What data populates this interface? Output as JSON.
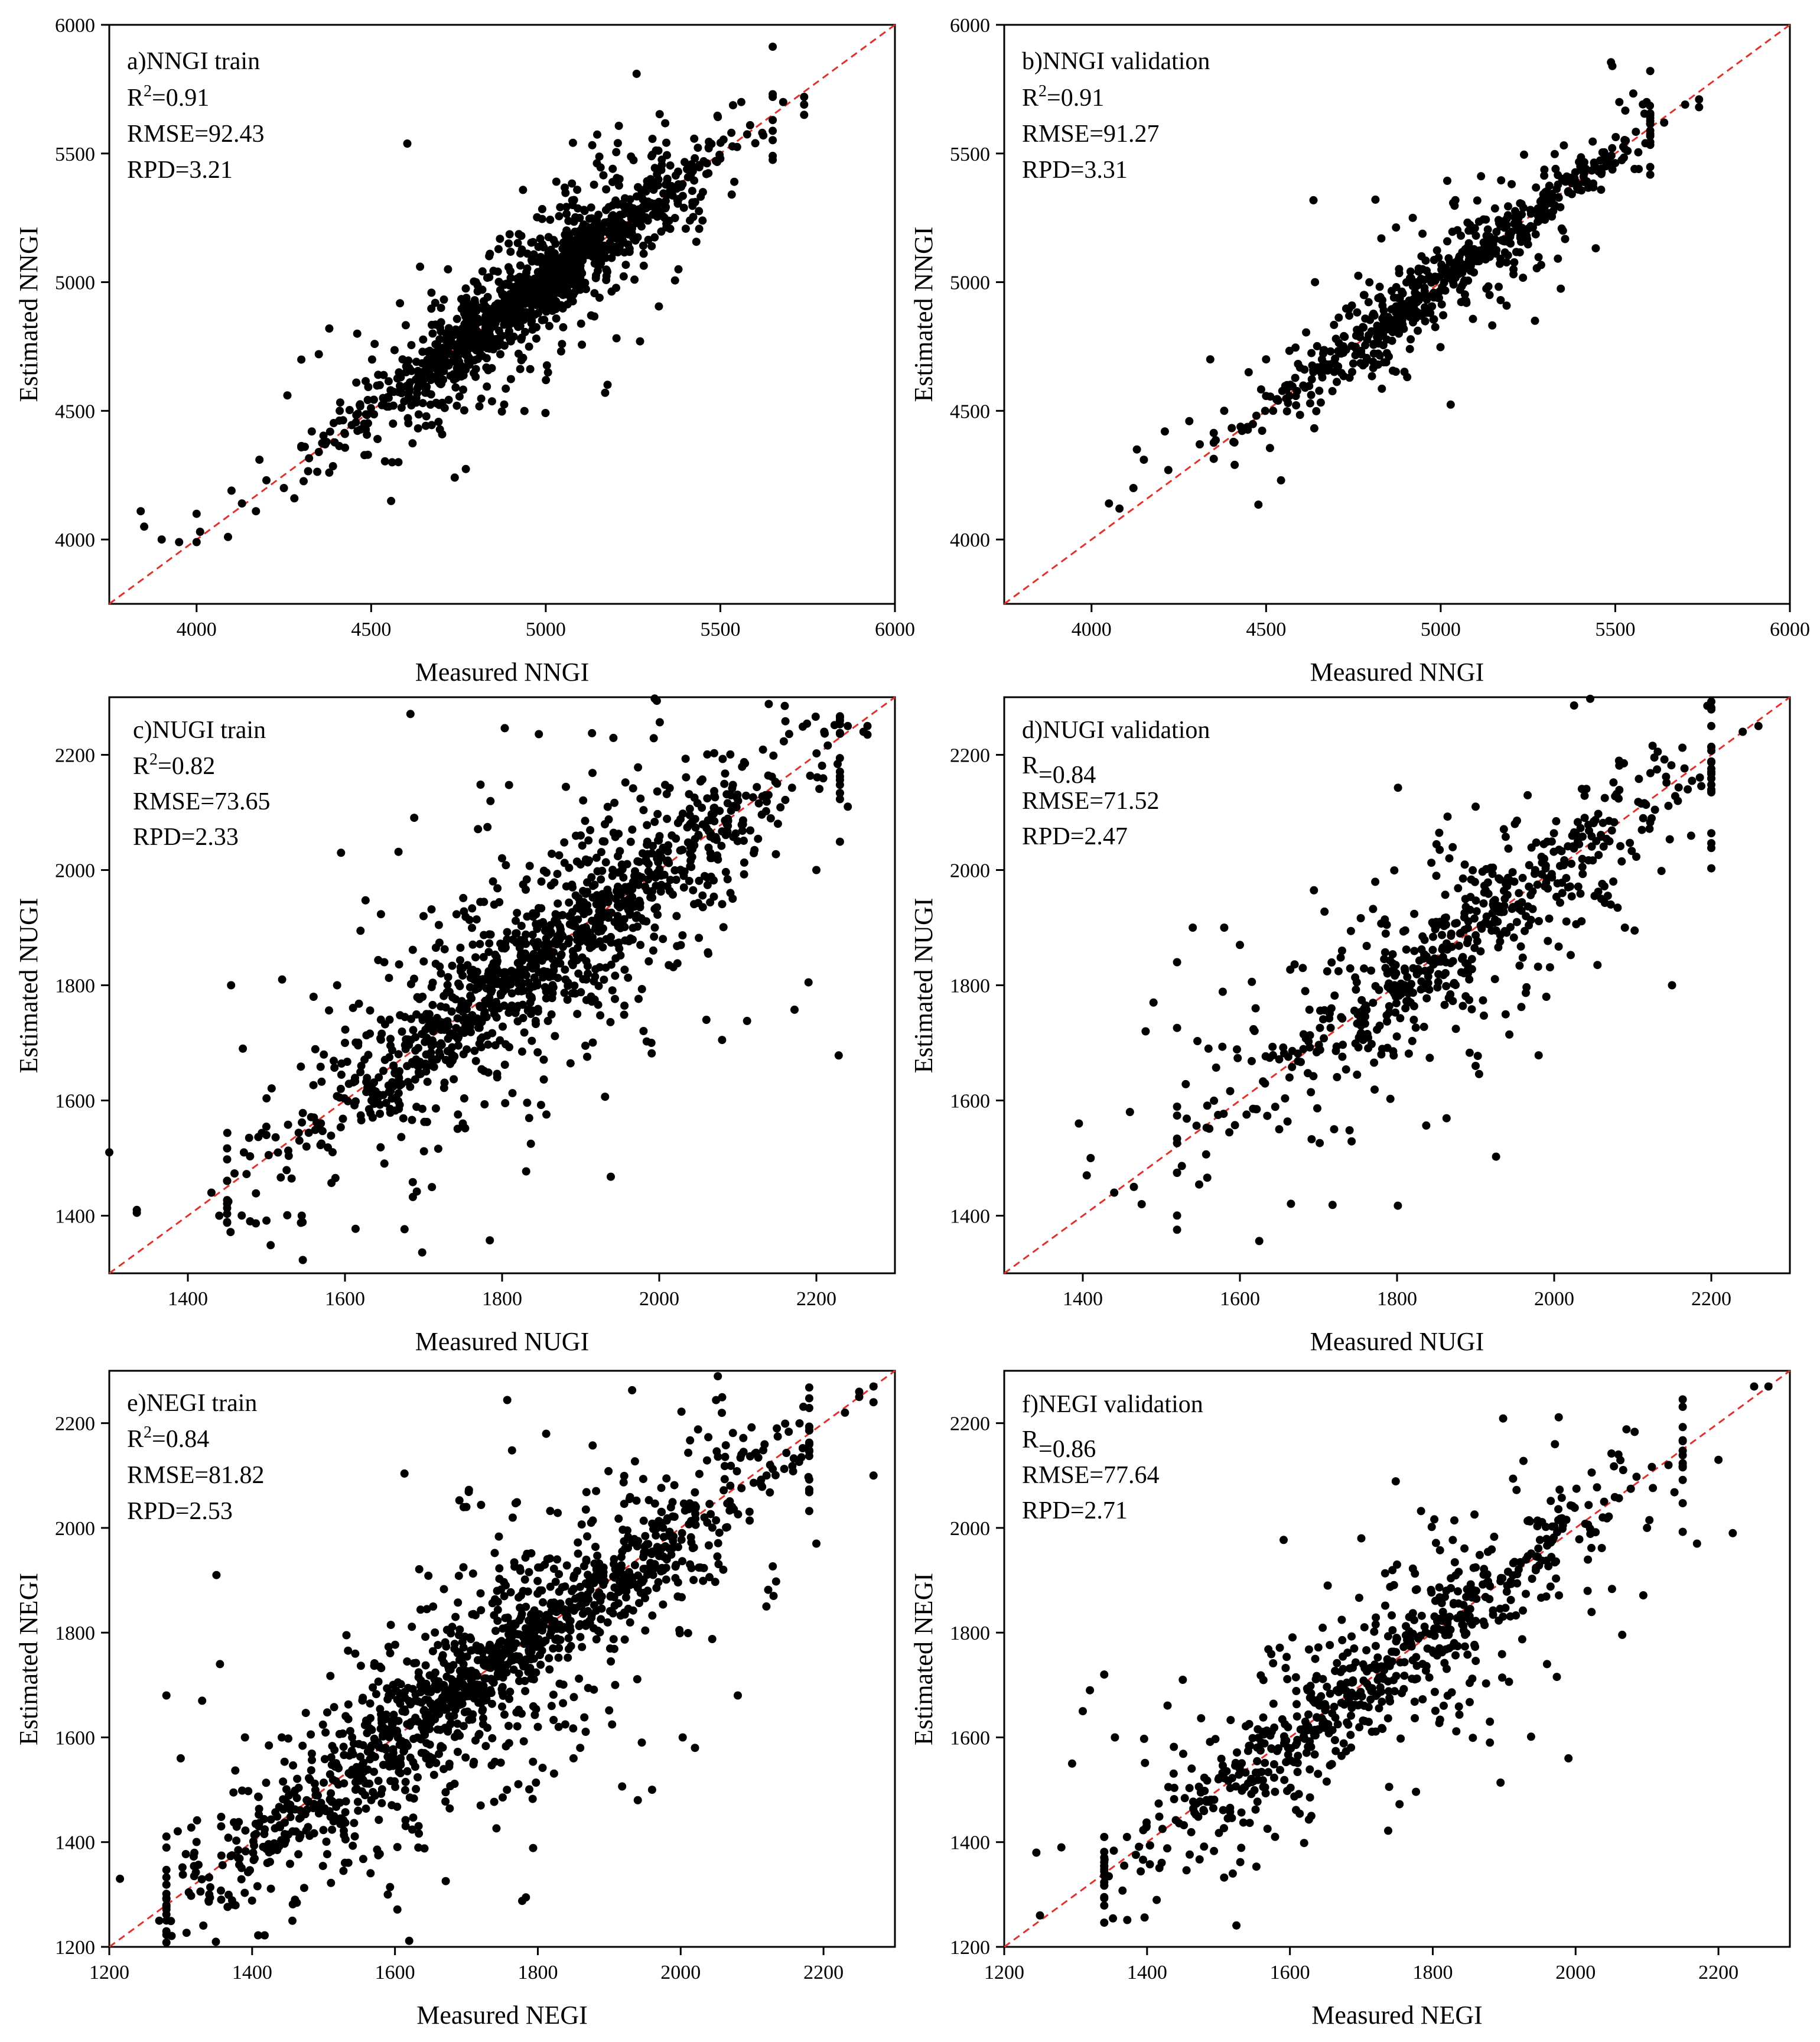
{
  "colors": {
    "points": "#000000",
    "identity_line": "#e0312b",
    "axes": "#000000"
  },
  "chart_data": [
    {
      "type": "scatter",
      "id": "a",
      "xlabel": "Measured NNGI",
      "ylabel": "Estimated NNGI",
      "xlim": [
        3750,
        6000
      ],
      "ylim": [
        3750,
        6000
      ],
      "xticks": [
        4000,
        4500,
        5000,
        5500,
        6000
      ],
      "yticks": [
        4000,
        4500,
        5000,
        5500,
        6000
      ],
      "xtick_labels": [
        "4000",
        "4500",
        "5000",
        "5500",
        "6000"
      ],
      "ytick_labels": [
        "4000",
        "4500",
        "5000",
        "5500",
        "6000"
      ],
      "annotation": {
        "title": "a)NNGI train",
        "r_label": "R",
        "r_sup": "2",
        "r_value": "=0.91",
        "rmse": "RMSE=92.43",
        "rpd": "RPD=3.21"
      },
      "identity_line": true,
      "points": [
        [
          3840,
          4110
        ],
        [
          3850,
          4050
        ],
        [
          3900,
          4000
        ],
        [
          3950,
          3990
        ],
        [
          4000,
          4100
        ],
        [
          4010,
          4030
        ],
        [
          4000,
          3990
        ],
        [
          4090,
          4010
        ],
        [
          4100,
          4190
        ],
        [
          4130,
          4140
        ],
        [
          4170,
          4110
        ],
        [
          4180,
          4310
        ],
        [
          4200,
          4230
        ],
        [
          4250,
          4200
        ],
        [
          4260,
          4560
        ],
        [
          4280,
          4160
        ],
        [
          4310,
          4360
        ],
        [
          4330,
          4420
        ],
        [
          4350,
          4720
        ],
        [
          4350,
          4340
        ],
        [
          4380,
          4820
        ],
        [
          4380,
          4260
        ],
        [
          4410,
          4500
        ],
        [
          4460,
          4800
        ],
        [
          4480,
          4450
        ],
        [
          4510,
          4760
        ],
        [
          4520,
          4640
        ],
        [
          4550,
          4550
        ],
        [
          4560,
          4300
        ],
        [
          4590,
          4700
        ],
        [
          4640,
          5060
        ],
        [
          4700,
          4900
        ],
        [
          4720,
          5050
        ],
        [
          4750,
          4650
        ],
        [
          4780,
          4870
        ],
        [
          4800,
          5000
        ],
        [
          4840,
          5110
        ],
        [
          4870,
          4720
        ],
        [
          4900,
          4770
        ],
        [
          4930,
          5180
        ],
        [
          4960,
          4850
        ],
        [
          4990,
          5020
        ],
        [
          5020,
          4930
        ],
        [
          5060,
          5200
        ],
        [
          5100,
          5000
        ],
        [
          5130,
          5290
        ],
        [
          5170,
          4570
        ],
        [
          5200,
          5250
        ],
        [
          5240,
          5130
        ],
        [
          5270,
          4770
        ],
        [
          5300,
          5400
        ],
        [
          5340,
          5250
        ],
        [
          5380,
          5380
        ],
        [
          5380,
          5050
        ],
        [
          5420,
          5310
        ],
        [
          5460,
          5420
        ],
        [
          5500,
          5480
        ],
        [
          5540,
          5390
        ],
        [
          5560,
          5700
        ],
        [
          5600,
          5540
        ],
        [
          5650,
          5630
        ],
        [
          5680,
          5700
        ],
        [
          5740,
          5690
        ],
        [
          5740,
          5650
        ],
        [
          5740,
          5720
        ],
        [
          5620,
          5580
        ],
        [
          5450,
          5350
        ],
        [
          5150,
          5100
        ],
        [
          4850,
          4830
        ],
        [
          4600,
          4650
        ],
        [
          4700,
          4700
        ],
        [
          4950,
          4950
        ],
        [
          5050,
          5050
        ],
        [
          5250,
          5250
        ]
      ],
      "density": {
        "seed": 11,
        "count": 1300,
        "x_range": [
          4300,
          5650
        ],
        "sd_base": 35,
        "sd_extra": 140,
        "mean": 4980,
        "spread": 260
      }
    },
    {
      "type": "scatter",
      "id": "b",
      "xlabel": "Measured NNGI",
      "ylabel": "Estimated NNGI",
      "xlim": [
        3750,
        6000
      ],
      "ylim": [
        3750,
        6000
      ],
      "xticks": [
        4000,
        4500,
        5000,
        5500,
        6000
      ],
      "yticks": [
        4000,
        4500,
        5000,
        5500,
        6000
      ],
      "xtick_labels": [
        "4000",
        "4500",
        "5000",
        "5500",
        "6000"
      ],
      "ytick_labels": [
        "4000",
        "4500",
        "5000",
        "5500",
        "6000"
      ],
      "annotation": {
        "title": "b)NNGI validation",
        "r_label": "R",
        "r_sup": "2",
        "r_value": "=0.91",
        "rmse": "RMSE=91.27",
        "rpd": "RPD=3.31"
      },
      "identity_line": true,
      "points": [
        [
          4050,
          4140
        ],
        [
          4080,
          4120
        ],
        [
          4120,
          4200
        ],
        [
          4130,
          4350
        ],
        [
          4150,
          4310
        ],
        [
          4210,
          4420
        ],
        [
          4220,
          4270
        ],
        [
          4280,
          4460
        ],
        [
          4310,
          4370
        ],
        [
          4340,
          4700
        ],
        [
          4380,
          4500
        ],
        [
          4410,
          4290
        ],
        [
          4450,
          4650
        ],
        [
          4500,
          4700
        ],
        [
          4520,
          4500
        ],
        [
          4560,
          4600
        ],
        [
          4640,
          5000
        ],
        [
          4660,
          4700
        ],
        [
          4700,
          4780
        ],
        [
          4780,
          4950
        ],
        [
          4830,
          5170
        ],
        [
          4880,
          4800
        ],
        [
          4920,
          5250
        ],
        [
          4970,
          4880
        ],
        [
          5040,
          5040
        ],
        [
          5080,
          5200
        ],
        [
          5140,
          4950
        ],
        [
          5200,
          5150
        ],
        [
          5270,
          4850
        ],
        [
          5300,
          5350
        ],
        [
          5350,
          5200
        ],
        [
          5400,
          5450
        ],
        [
          5460,
          5420
        ],
        [
          5530,
          5550
        ],
        [
          5590,
          5700
        ],
        [
          5640,
          5620
        ],
        [
          5700,
          5690
        ],
        [
          5740,
          5710
        ],
        [
          5740,
          5680
        ]
      ],
      "density": {
        "seed": 23,
        "count": 620,
        "x_range": [
          4350,
          5600
        ],
        "sd_base": 30,
        "sd_extra": 110,
        "mean": 5000,
        "spread": 280
      }
    },
    {
      "type": "scatter",
      "id": "c",
      "xlabel": "Measured NUGI",
      "ylabel": "Estimated NUGI",
      "xlim": [
        1300,
        2300
      ],
      "ylim": [
        1300,
        2300
      ],
      "xticks": [
        1400,
        1600,
        1800,
        2000,
        2200
      ],
      "yticks": [
        1400,
        1600,
        1800,
        2000,
        2200
      ],
      "xtick_labels": [
        "1400",
        "1600",
        "1800",
        "2000",
        "2200"
      ],
      "ytick_labels": [
        "1400",
        "1600",
        "1800",
        "2000",
        "2200"
      ],
      "annotation": {
        "title": "c)NUGI train",
        "r_label": "R",
        "r_sup": "2",
        "r_value": "=0.82",
        "rmse": "RMSE=73.65",
        "rpd": "RPD=2.33"
      },
      "identity_line": true,
      "points": [
        [
          1300,
          1510
        ],
        [
          1335,
          1410
        ],
        [
          1335,
          1405
        ],
        [
          1430,
          1440
        ],
        [
          1440,
          1400
        ],
        [
          1455,
          1800
        ],
        [
          1470,
          1690
        ],
        [
          1500,
          1540
        ],
        [
          1520,
          1810
        ],
        [
          1545,
          1400
        ],
        [
          1560,
          1780
        ],
        [
          1590,
          1800
        ],
        [
          1595,
          2030
        ],
        [
          1600,
          1700
        ],
        [
          1650,
          1840
        ],
        [
          1700,
          1920
        ],
        [
          1750,
          1560
        ],
        [
          1790,
          1940
        ],
        [
          1850,
          1980
        ],
        [
          1900,
          2060
        ],
        [
          1990,
          1700
        ],
        [
          2060,
          1740
        ],
        [
          2080,
          1705
        ],
        [
          2190,
          1805
        ],
        [
          2200,
          2000
        ],
        [
          2240,
          2110
        ],
        [
          2260,
          2240
        ],
        [
          2265,
          2250
        ],
        [
          2265,
          2235
        ],
        [
          2240,
          2250
        ],
        [
          2210,
          2240
        ],
        [
          2150,
          2150
        ]
      ],
      "density": {
        "seed": 37,
        "count": 1250,
        "x_range": [
          1450,
          2230
        ],
        "sd_base": 30,
        "sd_extra": 120,
        "mean": 1860,
        "spread": 170
      }
    },
    {
      "type": "scatter",
      "id": "d",
      "xlabel": "Measured NUGI",
      "ylabel": "Estimated NUGI",
      "xlim": [
        1300,
        2300
      ],
      "ylim": [
        1300,
        2300
      ],
      "xticks": [
        1400,
        1600,
        1800,
        2000,
        2200
      ],
      "yticks": [
        1400,
        1600,
        1800,
        2000,
        2200
      ],
      "xtick_labels": [
        "1400",
        "1600",
        "1800",
        "2000",
        "2200"
      ],
      "ytick_labels": [
        "1400",
        "1600",
        "1800",
        "2000",
        "2200"
      ],
      "annotation": {
        "title": "d)NUGI validation",
        "r_label": "R",
        "r_sup": "",
        "r_value": "=0.84",
        "rmse": "RMSE=71.52",
        "rpd": "RPD=2.47"
      },
      "identity_line": true,
      "points": [
        [
          1395,
          1560
        ],
        [
          1405,
          1470
        ],
        [
          1410,
          1500
        ],
        [
          1440,
          1440
        ],
        [
          1460,
          1580
        ],
        [
          1465,
          1450
        ],
        [
          1475,
          1420
        ],
        [
          1480,
          1720
        ],
        [
          1490,
          1770
        ],
        [
          1520,
          1840
        ],
        [
          1540,
          1900
        ],
        [
          1560,
          1690
        ],
        [
          1580,
          1900
        ],
        [
          1600,
          1870
        ],
        [
          1620,
          1760
        ],
        [
          1650,
          1550
        ],
        [
          1680,
          1830
        ],
        [
          1730,
          1860
        ],
        [
          1780,
          1680
        ],
        [
          1850,
          1990
        ],
        [
          1900,
          2110
        ],
        [
          1900,
          1660
        ],
        [
          1950,
          2080
        ],
        [
          1990,
          1780
        ],
        [
          2060,
          1950
        ],
        [
          2090,
          1900
        ],
        [
          2150,
          1800
        ],
        [
          2170,
          2140
        ],
        [
          2200,
          2250
        ],
        [
          2240,
          2240
        ],
        [
          2260,
          2250
        ]
      ],
      "density": {
        "seed": 41,
        "count": 620,
        "x_range": [
          1520,
          2200
        ],
        "sd_base": 25,
        "sd_extra": 110,
        "mean": 1880,
        "spread": 170
      }
    },
    {
      "type": "scatter",
      "id": "e",
      "xlabel": "Measured NEGI",
      "ylabel": "Estimated NEGI",
      "xlim": [
        1200,
        2300
      ],
      "ylim": [
        1200,
        2300
      ],
      "xticks": [
        1200,
        1400,
        1600,
        1800,
        2000,
        2200
      ],
      "yticks": [
        1200,
        1400,
        1600,
        1800,
        2000,
        2200
      ],
      "xtick_labels": [
        "1200",
        "1400",
        "1600",
        "1800",
        "2000",
        "2200"
      ],
      "ytick_labels": [
        "1200",
        "1400",
        "1600",
        "1800",
        "2000",
        "2200"
      ],
      "annotation": {
        "title": "e)NEGI train",
        "r_label": "R",
        "r_sup": "2",
        "r_value": "=0.84",
        "rmse": "RMSE=81.82",
        "rpd": "RPD=2.53"
      },
      "identity_line": true,
      "points": [
        [
          1215,
          1330
        ],
        [
          1270,
          1250
        ],
        [
          1280,
          1680
        ],
        [
          1300,
          1560
        ],
        [
          1330,
          1670
        ],
        [
          1350,
          1910
        ],
        [
          1355,
          1740
        ],
        [
          1390,
          1600
        ],
        [
          1460,
          1290
        ],
        [
          1540,
          1600
        ],
        [
          1590,
          1300
        ],
        [
          1700,
          2040
        ],
        [
          1720,
          1470
        ],
        [
          1800,
          1620
        ],
        [
          1850,
          1560
        ],
        [
          1940,
          1480
        ],
        [
          1960,
          1500
        ],
        [
          2020,
          1580
        ],
        [
          2080,
          1680
        ],
        [
          2120,
          1850
        ],
        [
          2130,
          1870
        ],
        [
          2190,
          1970
        ],
        [
          2250,
          2260
        ],
        [
          2270,
          2270
        ],
        [
          2270,
          2240
        ],
        [
          2270,
          2100
        ],
        [
          2250,
          2250
        ],
        [
          2230,
          2220
        ]
      ],
      "density": {
        "seed": 53,
        "count": 1450,
        "x_range": [
          1280,
          2180
        ],
        "sd_base": 30,
        "sd_extra": 130,
        "mean": 1720,
        "spread": 210
      }
    },
    {
      "type": "scatter",
      "id": "f",
      "xlabel": "Measured NEGI",
      "ylabel": "Estimated NEGI",
      "xlim": [
        1200,
        2300
      ],
      "ylim": [
        1200,
        2300
      ],
      "xticks": [
        1200,
        1400,
        1600,
        1800,
        2000,
        2200
      ],
      "yticks": [
        1200,
        1400,
        1600,
        1800,
        2000,
        2200
      ],
      "xtick_labels": [
        "1200",
        "1400",
        "1600",
        "1800",
        "2000",
        "2200"
      ],
      "ytick_labels": [
        "1200",
        "1400",
        "1600",
        "1800",
        "2000",
        "2200"
      ],
      "annotation": {
        "title": "f)NEGI validation",
        "r_label": "R",
        "r_sup": "",
        "r_value": "=0.86",
        "rmse": "RMSE=77.64",
        "rpd": "RPD=2.71"
      },
      "identity_line": true,
      "points": [
        [
          1245,
          1380
        ],
        [
          1250,
          1260
        ],
        [
          1280,
          1390
        ],
        [
          1295,
          1550
        ],
        [
          1310,
          1650
        ],
        [
          1320,
          1690
        ],
        [
          1340,
          1720
        ],
        [
          1355,
          1600
        ],
        [
          1450,
          1710
        ],
        [
          1500,
          1520
        ],
        [
          1520,
          1340
        ],
        [
          1560,
          1590
        ],
        [
          1610,
          1640
        ],
        [
          1630,
          1450
        ],
        [
          1700,
          1980
        ],
        [
          1750,
          1930
        ],
        [
          1830,
          1780
        ],
        [
          1880,
          1630
        ],
        [
          1880,
          1590
        ],
        [
          1960,
          1740
        ],
        [
          1990,
          1560
        ],
        [
          2040,
          2050
        ],
        [
          2060,
          2140
        ],
        [
          2100,
          2000
        ],
        [
          2130,
          2120
        ],
        [
          2170,
          1970
        ],
        [
          2200,
          2130
        ],
        [
          2220,
          1990
        ],
        [
          2250,
          2270
        ],
        [
          2270,
          2270
        ]
      ],
      "density": {
        "seed": 67,
        "count": 720,
        "x_range": [
          1340,
          2150
        ],
        "sd_base": 30,
        "sd_extra": 110,
        "mean": 1720,
        "spread": 200
      }
    }
  ]
}
